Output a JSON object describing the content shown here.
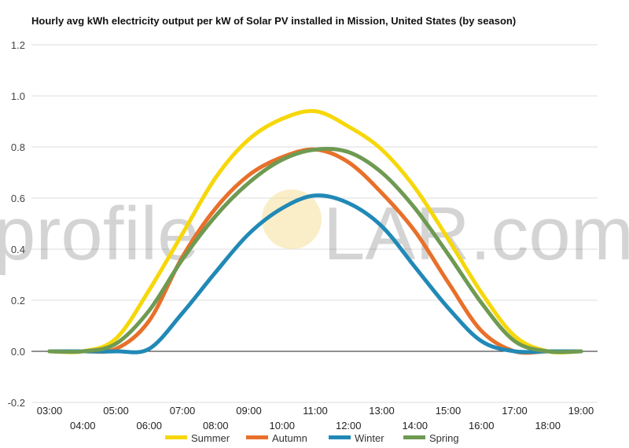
{
  "chart_data": {
    "type": "line",
    "title": "Hourly avg kWh electricity output per kW of Solar PV installed in Mission, United States (by season)",
    "xlabel": "",
    "ylabel": "",
    "ylim": [
      -0.2,
      1.2
    ],
    "yticks": [
      "-0.2",
      "0.0",
      "0.2",
      "0.4",
      "0.6",
      "0.8",
      "1.0",
      "1.2"
    ],
    "ytick_values": [
      -0.2,
      0,
      0.2,
      0.4,
      0.6,
      0.8,
      1.0,
      1.2
    ],
    "categories": [
      "03:00",
      "04:00",
      "05:00",
      "06:00",
      "07:00",
      "08:00",
      "09:00",
      "10:00",
      "11:00",
      "12:00",
      "13:00",
      "14:00",
      "15:00",
      "16:00",
      "17:00",
      "18:00",
      "19:00"
    ],
    "grid": true,
    "legend_position": "bottom",
    "series": [
      {
        "name": "Summer",
        "color": "#f6d70a",
        "values": [
          0,
          0,
          0.05,
          0.24,
          0.46,
          0.68,
          0.83,
          0.91,
          0.94,
          0.88,
          0.79,
          0.64,
          0.44,
          0.23,
          0.06,
          0,
          0
        ]
      },
      {
        "name": "Autumn",
        "color": "#e8702a",
        "values": [
          0,
          0,
          0.01,
          0.12,
          0.37,
          0.56,
          0.69,
          0.76,
          0.79,
          0.74,
          0.62,
          0.47,
          0.27,
          0.08,
          0,
          0,
          0
        ]
      },
      {
        "name": "Winter",
        "color": "#2189b6",
        "values": [
          0,
          0,
          0,
          0.01,
          0.15,
          0.31,
          0.46,
          0.56,
          0.61,
          0.58,
          0.49,
          0.33,
          0.17,
          0.04,
          0,
          0,
          0
        ]
      },
      {
        "name": "Spring",
        "color": "#6e9a52",
        "values": [
          0,
          0,
          0.03,
          0.16,
          0.36,
          0.53,
          0.66,
          0.75,
          0.79,
          0.78,
          0.7,
          0.56,
          0.38,
          0.19,
          0.04,
          0,
          0
        ]
      }
    ]
  },
  "watermark": {
    "left": "profile",
    "right": "LAR.com",
    "sun_color": "#f5e09a"
  }
}
